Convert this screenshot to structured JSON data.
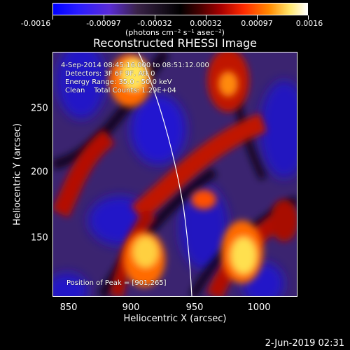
{
  "colorbar": {
    "labels": [
      "-0.0016",
      "-0.00097",
      "-0.00032",
      "0.00032",
      "0.00097",
      "0.0016"
    ],
    "units": "(photons cm⁻² s⁻¹ asec⁻²)"
  },
  "title": "Reconstructed RHESSI Image",
  "annotations": {
    "line1": "4-Sep-2014 08:45:16.000 to 08:51:12.000",
    "line2": "Detectors: 3F 6F 9F, Att 0",
    "line3": "Energy Range: 35.0 - 50.0 keV",
    "line4": "Clean    Total Counts: 1.29E+04",
    "peak": "Position of Peak = [901,265]"
  },
  "axes": {
    "xlabel": "Heliocentric X (arcsec)",
    "ylabel": "Heliocentric Y (arcsec)",
    "xticks": [
      "850",
      "900",
      "950",
      "1000"
    ],
    "yticks": [
      "150",
      "200",
      "250"
    ]
  },
  "footer": {
    "date": "2-Jun-2019 02:31"
  },
  "colors": {
    "blue": "#1e12d8",
    "purple": "#3a226e",
    "dark": "#120818",
    "red": "#c81000",
    "orange": "#ff7a00",
    "yellow": "#ffe85a"
  }
}
